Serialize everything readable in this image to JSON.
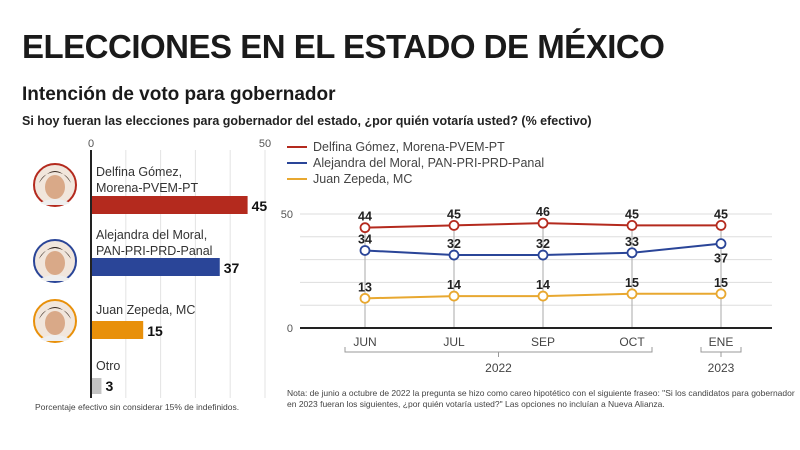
{
  "header": {
    "title": "ELECCIONES EN EL ESTADO DE MÉXICO",
    "subtitle": "Intención de voto para gobernador",
    "question": "Si hoy fueran las elecciones para gobernador del estado, ¿por quién votaría usted? (% efectivo)"
  },
  "colors": {
    "morena": "#b42a1e",
    "pan": "#2a4598",
    "mc": "#e8900a",
    "mc_line": "#e8a830",
    "otro": "#c4c4c4",
    "grid": "#dddddd",
    "axis": "#222222"
  },
  "chart_data": [
    {
      "type": "bar",
      "orientation": "horizontal",
      "title": "Intención de voto para gobernador",
      "xlim": [
        0,
        50
      ],
      "tick_labels": [
        "0",
        "50"
      ],
      "grid": true,
      "categories": [
        "Delfina Gómez, Morena-PVEM-PT",
        "Alejandra del Moral, PAN-PRI-PRD-Panal",
        "Juan Zepeda, MC",
        "Otro"
      ],
      "bars": [
        {
          "line1": "Delfina Gómez,",
          "line2": "Morena-PVEM-PT",
          "value": 45,
          "label": "45",
          "color": "#b42a1e",
          "avatar": "avatar-delfina-gomez"
        },
        {
          "line1": "Alejandra del Moral,",
          "line2": "PAN-PRI-PRD-Panal",
          "value": 37,
          "label": "37",
          "color": "#2a4598",
          "avatar": "avatar-alejandra-del-moral"
        },
        {
          "line1": "Juan Zepeda, MC",
          "line2": "",
          "value": 15,
          "label": "15",
          "color": "#e8900a",
          "avatar": "avatar-juan-zepeda"
        },
        {
          "line1": "Otro",
          "line2": "",
          "value": 3,
          "label": "3",
          "color": "#c4c4c4",
          "avatar": ""
        }
      ],
      "footnote": "Porcentaje efectivo sin considerar 15% de indefinidos."
    },
    {
      "type": "line",
      "x": [
        "JUN",
        "JUL",
        "SEP",
        "OCT",
        "ENE"
      ],
      "year_groups": [
        {
          "label": "2022",
          "from": 0,
          "to": 3
        },
        {
          "label": "2023",
          "from": 4,
          "to": 4
        }
      ],
      "ylim": [
        0,
        50
      ],
      "y_tick_labels": [
        "0",
        "50"
      ],
      "grid": true,
      "legend_position": "top-left",
      "series": [
        {
          "name": "Delfina Gómez, Morena-PVEM-PT",
          "color": "#b42a1e",
          "values": [
            44,
            45,
            46,
            45,
            45
          ],
          "label_pos": [
            "above",
            "above",
            "above",
            "above",
            "above"
          ]
        },
        {
          "name": "Alejandra del Moral, PAN-PRI-PRD-Panal",
          "color": "#2a4598",
          "values": [
            34,
            32,
            32,
            33,
            37
          ],
          "label_pos": [
            "above",
            "above",
            "above",
            "above",
            "below"
          ]
        },
        {
          "name": "Juan Zepeda, MC",
          "color": "#e8a830",
          "values": [
            13,
            14,
            14,
            15,
            15
          ],
          "label_pos": [
            "above",
            "above",
            "above",
            "above",
            "above"
          ]
        }
      ],
      "note": "Nota: de junio a octubre de 2022 la pregunta se hizo como careo hipotético con el siguiente fraseo: \"Si los candidatos para gobernador en 2023 fueran los siguientes, ¿por quién votaría usted?\" Las opciones no incluían a Nueva Alianza."
    }
  ]
}
